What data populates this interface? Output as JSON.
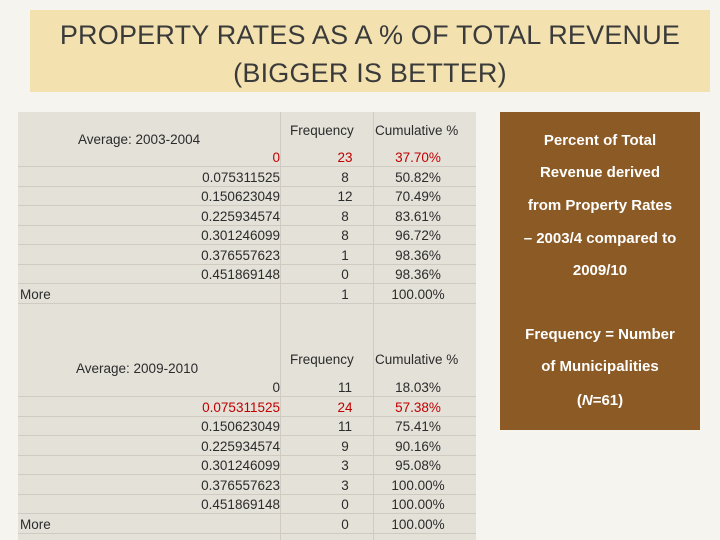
{
  "title": {
    "line1": "PROPERTY RATES AS A % OF TOTAL REVENUE",
    "line2": "(BIGGER IS BETTER)"
  },
  "table1": {
    "label": "Average: 2003-2004",
    "col_freq": "Frequency",
    "col_cum": "Cumulative %",
    "rows": [
      {
        "bin": "0",
        "freq": "23",
        "cum": "37.70%",
        "highlight": true
      },
      {
        "bin": "0.075311525",
        "freq": "8",
        "cum": "50.82%",
        "highlight": false
      },
      {
        "bin": "0.150623049",
        "freq": "12",
        "cum": "70.49%",
        "highlight": false
      },
      {
        "bin": "0.225934574",
        "freq": "8",
        "cum": "83.61%",
        "highlight": false
      },
      {
        "bin": "0.301246099",
        "freq": "8",
        "cum": "96.72%",
        "highlight": false
      },
      {
        "bin": "0.376557623",
        "freq": "1",
        "cum": "98.36%",
        "highlight": false
      },
      {
        "bin": "0.451869148",
        "freq": "0",
        "cum": "98.36%",
        "highlight": false
      },
      {
        "bin": "More",
        "freq": "1",
        "cum": "100.00%",
        "highlight": false
      }
    ]
  },
  "table2": {
    "label": "Average:  2009-2010",
    "col_freq": "Frequency",
    "col_cum": "Cumulative %",
    "rows": [
      {
        "bin": "0",
        "freq": "11",
        "cum": "18.03%",
        "highlight": false
      },
      {
        "bin": "0.075311525",
        "freq": "24",
        "cum": "57.38%",
        "highlight": true
      },
      {
        "bin": "0.150623049",
        "freq": "11",
        "cum": "75.41%",
        "highlight": false
      },
      {
        "bin": "0.225934574",
        "freq": "9",
        "cum": "90.16%",
        "highlight": false
      },
      {
        "bin": "0.301246099",
        "freq": "3",
        "cum": "95.08%",
        "highlight": false
      },
      {
        "bin": "0.376557623",
        "freq": "3",
        "cum": "100.00%",
        "highlight": false
      },
      {
        "bin": "0.451869148",
        "freq": "0",
        "cum": "100.00%",
        "highlight": false
      },
      {
        "bin": "More",
        "freq": "0",
        "cum": "100.00%",
        "highlight": false
      }
    ]
  },
  "sidebar": {
    "line1": "Percent of Total",
    "line2": "Revenue derived",
    "line3": "from Property Rates",
    "line4": "– 2003/4 compared to",
    "line5": "2009/10",
    "line6": "Frequency = Number",
    "line7": "of Municipalities",
    "line8_pre": "(",
    "line8_n": "N",
    "line8_post": "=61)"
  },
  "colors": {
    "title_band": "#f3e2b0",
    "sidebar": "#8b5a25",
    "highlight": "#c00000"
  }
}
